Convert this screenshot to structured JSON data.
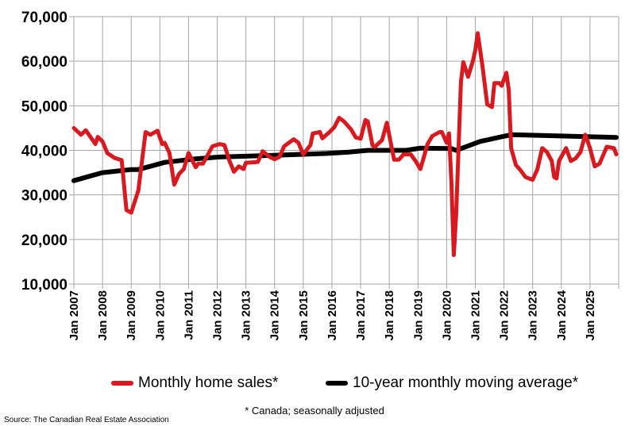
{
  "chart_data": {
    "type": "line",
    "title": "",
    "xlabel": "",
    "ylabel": "",
    "ylim": [
      10000,
      70000
    ],
    "yticks": [
      "10,000",
      "20,000",
      "30,000",
      "40,000",
      "50,000",
      "60,000",
      "70,000"
    ],
    "xlim": [
      "2007-01",
      "2026-01"
    ],
    "xticks": [
      "Jan 2007",
      "Jan 2008",
      "Jan 2009",
      "Jan 2010",
      "Jan 2011",
      "Jan 2012",
      "Jan 2013",
      "Jan 2014",
      "Jan 2015",
      "Jan 2016",
      "Jan 2017",
      "Jan 2018",
      "Jan 2019",
      "Jan 2020",
      "Jan 2021",
      "Jan 2022",
      "Jan 2023",
      "Jan 2024",
      "Jan 2025"
    ],
    "grid": true,
    "legend_position": "bottom",
    "series": [
      {
        "name": "Monthly home sales*",
        "color": "#d71920",
        "points": [
          [
            "2007-01",
            45000
          ],
          [
            "2007-04",
            43500
          ],
          [
            "2007-06",
            44500
          ],
          [
            "2007-10",
            41400
          ],
          [
            "2007-11",
            43000
          ],
          [
            "2008-01",
            42000
          ],
          [
            "2008-03",
            39400
          ],
          [
            "2008-06",
            38300
          ],
          [
            "2008-09",
            37800
          ],
          [
            "2008-11",
            26600
          ],
          [
            "2009-01",
            26000
          ],
          [
            "2009-04",
            31000
          ],
          [
            "2009-07",
            44100
          ],
          [
            "2009-09",
            43500
          ],
          [
            "2009-12",
            44400
          ],
          [
            "2010-02",
            41400
          ],
          [
            "2010-03",
            41700
          ],
          [
            "2010-05",
            39400
          ],
          [
            "2010-07",
            32300
          ],
          [
            "2010-09",
            34700
          ],
          [
            "2010-11",
            35800
          ],
          [
            "2011-01",
            39400
          ],
          [
            "2011-04",
            36200
          ],
          [
            "2011-05",
            37000
          ],
          [
            "2011-07",
            37000
          ],
          [
            "2011-11",
            40900
          ],
          [
            "2012-02",
            41400
          ],
          [
            "2012-04",
            41200
          ],
          [
            "2012-06",
            37800
          ],
          [
            "2012-08",
            35200
          ],
          [
            "2012-10",
            36400
          ],
          [
            "2012-12",
            35800
          ],
          [
            "2013-01",
            37200
          ],
          [
            "2013-06",
            37400
          ],
          [
            "2013-08",
            39800
          ],
          [
            "2013-11",
            38500
          ],
          [
            "2014-01",
            38000
          ],
          [
            "2014-03",
            38500
          ],
          [
            "2014-05",
            40900
          ],
          [
            "2014-09",
            42500
          ],
          [
            "2014-11",
            41700
          ],
          [
            "2015-01",
            39100
          ],
          [
            "2015-04",
            41200
          ],
          [
            "2015-05",
            43800
          ],
          [
            "2015-08",
            44100
          ],
          [
            "2015-09",
            42700
          ],
          [
            "2015-12",
            44100
          ],
          [
            "2016-02",
            45200
          ],
          [
            "2016-04",
            47300
          ],
          [
            "2016-06",
            46500
          ],
          [
            "2016-09",
            44700
          ],
          [
            "2016-11",
            42900
          ],
          [
            "2017-01",
            42600
          ],
          [
            "2017-03",
            46800
          ],
          [
            "2017-04",
            46500
          ],
          [
            "2017-06",
            41100
          ],
          [
            "2017-07",
            40800
          ],
          [
            "2017-10",
            42300
          ],
          [
            "2017-12",
            46200
          ],
          [
            "2018-03",
            37900
          ],
          [
            "2018-05",
            37900
          ],
          [
            "2018-07",
            39100
          ],
          [
            "2018-10",
            39100
          ],
          [
            "2018-12",
            37600
          ],
          [
            "2019-02",
            35800
          ],
          [
            "2019-03",
            37600
          ],
          [
            "2019-05",
            41400
          ],
          [
            "2019-07",
            43200
          ],
          [
            "2019-10",
            44100
          ],
          [
            "2019-11",
            44100
          ],
          [
            "2020-01",
            41700
          ],
          [
            "2020-02",
            43800
          ],
          [
            "2020-03",
            32800
          ],
          [
            "2020-04",
            16500
          ],
          [
            "2020-05",
            25700
          ],
          [
            "2020-07",
            55400
          ],
          [
            "2020-08",
            59800
          ],
          [
            "2020-10",
            56500
          ],
          [
            "2020-12",
            60100
          ],
          [
            "2021-01",
            62500
          ],
          [
            "2021-02",
            66300
          ],
          [
            "2021-04",
            58900
          ],
          [
            "2021-06",
            50300
          ],
          [
            "2021-08",
            49700
          ],
          [
            "2021-09",
            55100
          ],
          [
            "2021-11",
            55100
          ],
          [
            "2021-12",
            54500
          ],
          [
            "2022-02",
            57400
          ],
          [
            "2022-03",
            53600
          ],
          [
            "2022-04",
            40500
          ],
          [
            "2022-06",
            36700
          ],
          [
            "2022-08",
            35500
          ],
          [
            "2022-10",
            34000
          ],
          [
            "2023-01",
            33400
          ],
          [
            "2023-03",
            35800
          ],
          [
            "2023-05",
            40500
          ],
          [
            "2023-07",
            39600
          ],
          [
            "2023-09",
            37600
          ],
          [
            "2023-10",
            34000
          ],
          [
            "2023-11",
            33700
          ],
          [
            "2023-12",
            37600
          ],
          [
            "2024-03",
            40500
          ],
          [
            "2024-05",
            37600
          ],
          [
            "2024-07",
            38200
          ],
          [
            "2024-09",
            39600
          ],
          [
            "2024-11",
            43500
          ],
          [
            "2025-01",
            40500
          ],
          [
            "2025-03",
            36400
          ],
          [
            "2025-05",
            37000
          ],
          [
            "2025-08",
            40800
          ],
          [
            "2025-11",
            40500
          ],
          [
            "2025-12",
            39100
          ]
        ]
      },
      {
        "name": "10-year monthly moving average*",
        "color": "#000000",
        "points": [
          [
            "2007-01",
            33200
          ],
          [
            "2008-01",
            35000
          ],
          [
            "2009-01",
            35700
          ],
          [
            "2009-04",
            35700
          ],
          [
            "2010-03",
            37300
          ],
          [
            "2011-04",
            38100
          ],
          [
            "2012-02",
            38500
          ],
          [
            "2014-01",
            38900
          ],
          [
            "2015-11",
            39300
          ],
          [
            "2016-08",
            39600
          ],
          [
            "2017-04",
            40000
          ],
          [
            "2018-08",
            40000
          ],
          [
            "2019-02",
            40500
          ],
          [
            "2020-03",
            40400
          ],
          [
            "2020-05",
            40000
          ],
          [
            "2021-03",
            42000
          ],
          [
            "2022-04",
            43500
          ],
          [
            "2025-12",
            42900
          ]
        ]
      }
    ]
  },
  "footnote": "* Canada; seasonally adjusted",
  "source": "Source: The Canadian Real Estate Association"
}
